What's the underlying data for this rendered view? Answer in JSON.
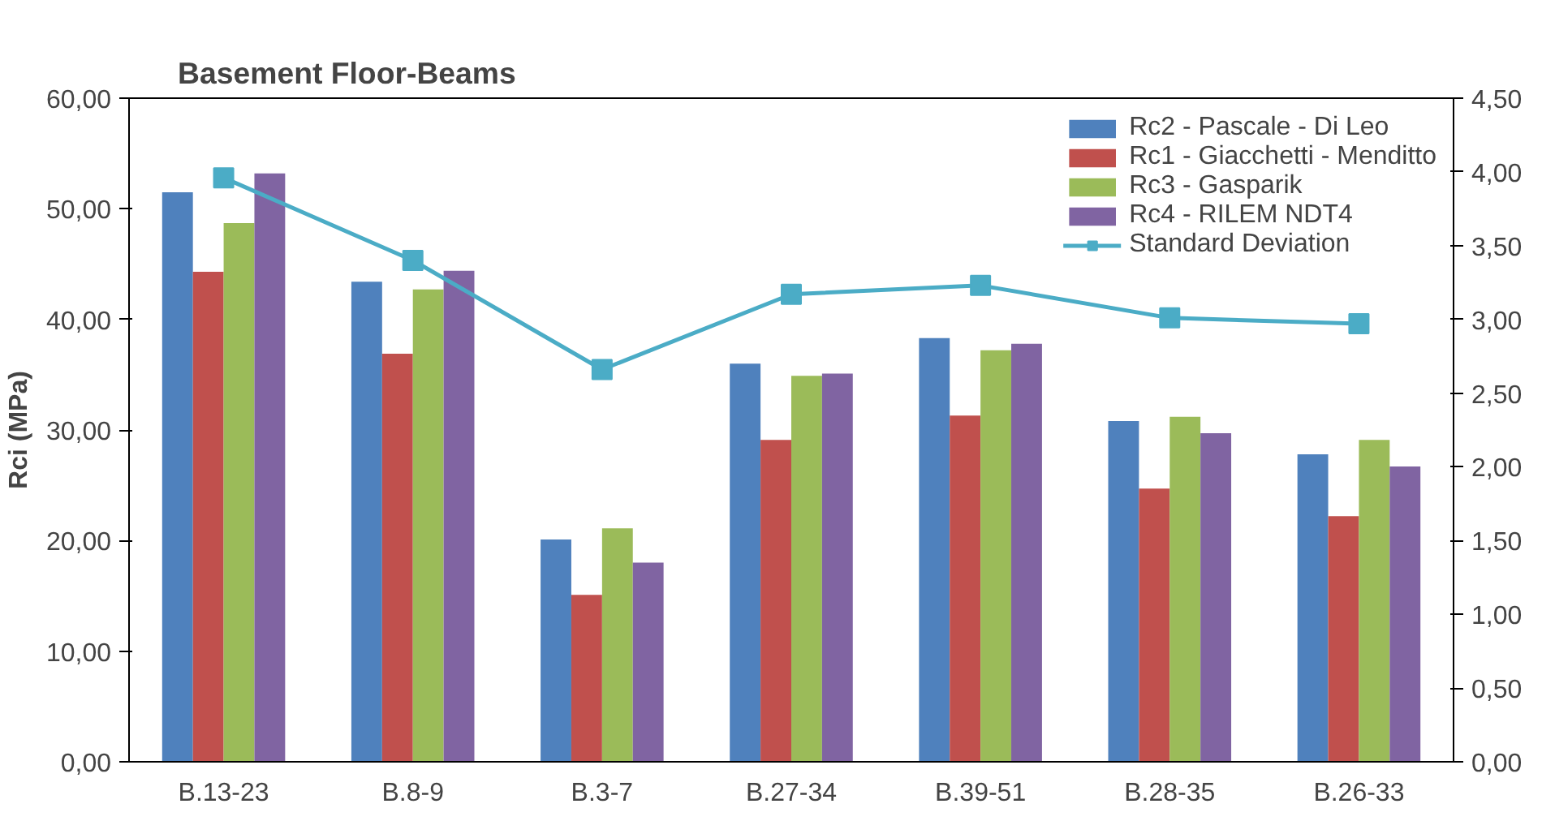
{
  "chart_data": {
    "type": "bar",
    "title": "Basement Floor-Beams",
    "ylabel": "Rci (MPa)",
    "categories": [
      "B.13-23",
      "B.8-9",
      "B.3-7",
      "B.27-34",
      "B.39-51",
      "B.28-35",
      "B.26-33"
    ],
    "series": [
      {
        "name": "Rc2 - Pascale - Di Leo",
        "color": "#4f81bd",
        "values": [
          51.5,
          43.4,
          20.1,
          36.0,
          38.3,
          30.8,
          27.8
        ]
      },
      {
        "name": "Rc1 - Giacchetti - Menditto",
        "color": "#c0504d",
        "values": [
          44.3,
          36.9,
          15.1,
          29.1,
          31.3,
          24.7,
          22.2
        ]
      },
      {
        "name": "Rc3 - Gasparik",
        "color": "#9bbb59",
        "values": [
          48.7,
          42.7,
          21.1,
          34.9,
          37.2,
          31.2,
          29.1
        ]
      },
      {
        "name": "Rc4 - RILEM NDT4",
        "color": "#8064a2",
        "values": [
          53.2,
          44.4,
          18.0,
          35.1,
          37.8,
          29.7,
          26.7
        ]
      },
      {
        "name": "Standard Deviation",
        "color": "#4bacc6",
        "type": "line",
        "axis": "y2",
        "marker": "square",
        "values": [
          3.96,
          3.4,
          2.66,
          3.17,
          3.23,
          3.01,
          2.97
        ]
      }
    ],
    "ylim": [
      0,
      60
    ],
    "yticks": [
      {
        "value": 0,
        "label": "0,00"
      },
      {
        "value": 10,
        "label": "10,00"
      },
      {
        "value": 20,
        "label": "20,00"
      },
      {
        "value": 30,
        "label": "30,00"
      },
      {
        "value": 40,
        "label": "40,00"
      },
      {
        "value": 50,
        "label": "50,00"
      },
      {
        "value": 60,
        "label": "60,00"
      }
    ],
    "y2lim": [
      0,
      4.5
    ],
    "y2ticks": [
      {
        "value": 0,
        "label": "0,00"
      },
      {
        "value": 0.5,
        "label": "0,50"
      },
      {
        "value": 1,
        "label": "1,00"
      },
      {
        "value": 1.5,
        "label": "1,50"
      },
      {
        "value": 2,
        "label": "2,00"
      },
      {
        "value": 2.5,
        "label": "2,50"
      },
      {
        "value": 3,
        "label": "3,00"
      },
      {
        "value": 3.5,
        "label": "3,50"
      },
      {
        "value": 4,
        "label": "4,00"
      },
      {
        "value": 4.5,
        "label": "4,50"
      }
    ],
    "grid": false,
    "legend": "top right"
  }
}
